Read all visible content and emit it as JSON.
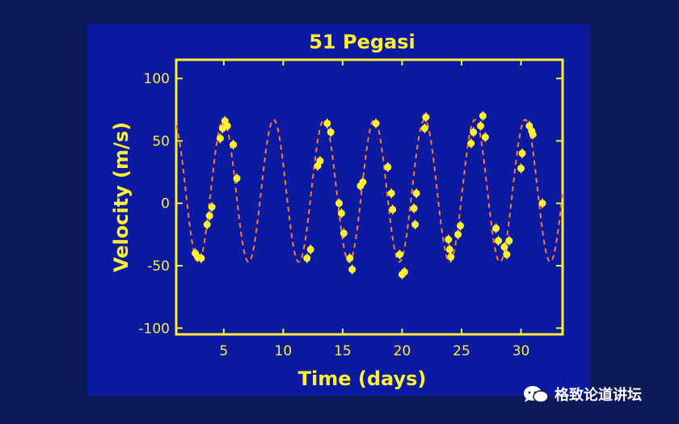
{
  "chart_data": {
    "type": "scatter",
    "title": "51 Pegasi",
    "xlabel": "Time (days)",
    "ylabel": "Velocity (m/s)",
    "xlim": [
      1,
      33.5
    ],
    "ylim": [
      -105,
      115
    ],
    "xticks": [
      5,
      10,
      15,
      20,
      25,
      30
    ],
    "yticks": [
      -100,
      -50,
      0,
      50,
      100
    ],
    "grid": false,
    "colors": {
      "points": "#ffef33",
      "curve": "#ff7a2a",
      "axes": "#ffef33",
      "background": "#0b1aa0"
    },
    "model_curve": {
      "style": "dashed",
      "amplitude": 57,
      "offset": 10,
      "period": 4.23,
      "phase_zero_day": 9.2
    },
    "points": [
      {
        "x": 2.6,
        "y": -40
      },
      {
        "x": 2.8,
        "y": -43
      },
      {
        "x": 3.1,
        "y": -44
      },
      {
        "x": 3.6,
        "y": -17
      },
      {
        "x": 3.8,
        "y": -10
      },
      {
        "x": 4.0,
        "y": -3
      },
      {
        "x": 4.7,
        "y": 52
      },
      {
        "x": 4.9,
        "y": 60
      },
      {
        "x": 5.1,
        "y": 66
      },
      {
        "x": 5.3,
        "y": 62
      },
      {
        "x": 5.8,
        "y": 47
      },
      {
        "x": 6.1,
        "y": 20
      },
      {
        "x": 12.0,
        "y": -44
      },
      {
        "x": 12.3,
        "y": -37
      },
      {
        "x": 12.9,
        "y": 30
      },
      {
        "x": 13.1,
        "y": 34
      },
      {
        "x": 13.7,
        "y": 64
      },
      {
        "x": 14.0,
        "y": 57
      },
      {
        "x": 14.7,
        "y": 0
      },
      {
        "x": 14.9,
        "y": -8
      },
      {
        "x": 15.1,
        "y": -24
      },
      {
        "x": 15.6,
        "y": -44
      },
      {
        "x": 15.8,
        "y": -53
      },
      {
        "x": 16.5,
        "y": 14
      },
      {
        "x": 16.7,
        "y": 17
      },
      {
        "x": 17.8,
        "y": 64
      },
      {
        "x": 18.8,
        "y": 29
      },
      {
        "x": 19.1,
        "y": 8
      },
      {
        "x": 19.2,
        "y": -5
      },
      {
        "x": 19.8,
        "y": -41
      },
      {
        "x": 20.0,
        "y": -57
      },
      {
        "x": 20.2,
        "y": -55
      },
      {
        "x": 21.0,
        "y": -4
      },
      {
        "x": 21.1,
        "y": -17
      },
      {
        "x": 21.2,
        "y": 8
      },
      {
        "x": 21.9,
        "y": 60
      },
      {
        "x": 22.0,
        "y": 69
      },
      {
        "x": 23.9,
        "y": -29
      },
      {
        "x": 24.0,
        "y": -37
      },
      {
        "x": 24.1,
        "y": -43
      },
      {
        "x": 24.7,
        "y": -25
      },
      {
        "x": 24.9,
        "y": -18
      },
      {
        "x": 25.8,
        "y": 48
      },
      {
        "x": 26.0,
        "y": 57
      },
      {
        "x": 26.6,
        "y": 62
      },
      {
        "x": 26.8,
        "y": 70
      },
      {
        "x": 27.0,
        "y": 53
      },
      {
        "x": 27.9,
        "y": -20
      },
      {
        "x": 28.1,
        "y": -30
      },
      {
        "x": 28.6,
        "y": -35
      },
      {
        "x": 28.8,
        "y": -41
      },
      {
        "x": 29.0,
        "y": -30
      },
      {
        "x": 30.0,
        "y": 28
      },
      {
        "x": 30.1,
        "y": 40
      },
      {
        "x": 30.7,
        "y": 62
      },
      {
        "x": 30.9,
        "y": 58
      },
      {
        "x": 31.0,
        "y": 55
      },
      {
        "x": 31.8,
        "y": 0
      }
    ]
  },
  "watermark": {
    "text": "格致论道讲坛",
    "icon": "chat-bubbles-icon"
  }
}
